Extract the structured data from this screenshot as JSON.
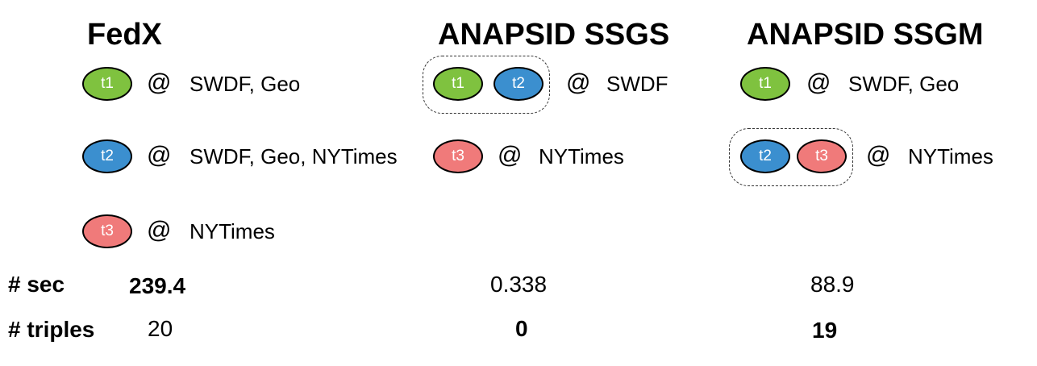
{
  "colors": {
    "t1": "#7fc23f",
    "t2": "#3b8fcf",
    "t3": "#f07a7a"
  },
  "fedx": {
    "title": "FedX",
    "rows": [
      {
        "triple": "t1",
        "at": "@",
        "sources": "SWDF, Geo"
      },
      {
        "triple": "t2",
        "at": "@",
        "sources": "SWDF, Geo, NYTimes"
      },
      {
        "triple": "t3",
        "at": "@",
        "sources": "NYTimes"
      }
    ],
    "sec": "239.4",
    "triples": "20"
  },
  "ssgs": {
    "title": "ANAPSID SSGS",
    "rows": [
      {
        "triples": [
          "t1",
          "t2"
        ],
        "at": "@",
        "sources": "SWDF"
      },
      {
        "triple": "t3",
        "at": "@",
        "sources": "NYTimes"
      }
    ],
    "sec": "0.338",
    "triples": "0"
  },
  "ssgm": {
    "title": "ANAPSID SSGM",
    "rows": [
      {
        "triple": "t1",
        "at": "@",
        "sources": "SWDF, Geo"
      },
      {
        "triples": [
          "t2",
          "t3"
        ],
        "at": "@",
        "sources": "NYTimes"
      }
    ],
    "sec": "88.9",
    "triples": "19"
  },
  "metrics": {
    "sec_label": "# sec",
    "triples_label": "# triples"
  }
}
